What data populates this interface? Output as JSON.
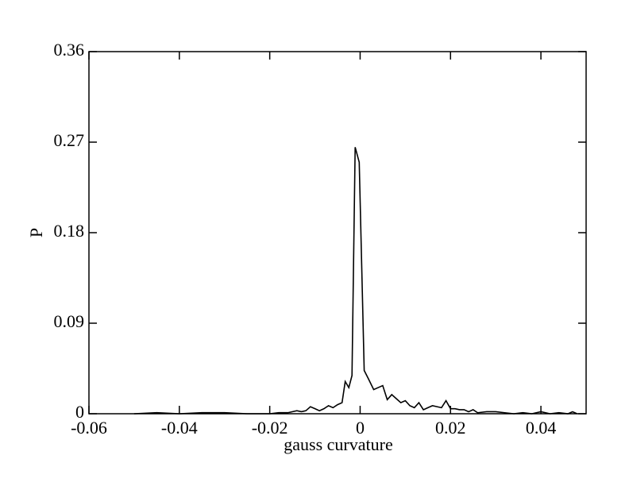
{
  "chart_data": {
    "type": "line",
    "xlabel": "gauss curvature",
    "ylabel": "P",
    "x": [
      -0.05,
      -0.045,
      -0.04,
      -0.035,
      -0.03,
      -0.025,
      -0.02,
      -0.018,
      -0.016,
      -0.014,
      -0.013,
      -0.012,
      -0.011,
      -0.01,
      -0.009,
      -0.008,
      -0.007,
      -0.006,
      -0.005,
      -0.004,
      -0.0033,
      -0.0025,
      -0.0018,
      -0.0011,
      -0.0002,
      0.0009,
      0.0018,
      0.003,
      0.004,
      0.005,
      0.006,
      0.007,
      0.008,
      0.009,
      0.01,
      0.011,
      0.012,
      0.013,
      0.014,
      0.015,
      0.016,
      0.017,
      0.018,
      0.019,
      0.02,
      0.021,
      0.022,
      0.023,
      0.024,
      0.025,
      0.026,
      0.028,
      0.03,
      0.032,
      0.034,
      0.036,
      0.038,
      0.04,
      0.042,
      0.044,
      0.046,
      0.047,
      0.048
    ],
    "series": [
      {
        "color": "#000000",
        "values": [
          0,
          0.001,
          0,
          0.001,
          0.001,
          0,
          0,
          0.001,
          0.001,
          0.003,
          0.002,
          0.003,
          0.007,
          0.005,
          0.003,
          0.005,
          0.008,
          0.006,
          0.009,
          0.011,
          0.032,
          0.026,
          0.038,
          0.265,
          0.25,
          0.043,
          0.035,
          0.024,
          0.026,
          0.028,
          0.014,
          0.019,
          0.015,
          0.011,
          0.013,
          0.008,
          0.006,
          0.011,
          0.004,
          0.006,
          0.008,
          0.007,
          0.006,
          0.013,
          0.005,
          0.005,
          0.004,
          0.004,
          0.002,
          0.004,
          0.001,
          0.002,
          0.002,
          0.001,
          0,
          0.001,
          0,
          0.002,
          0,
          0.001,
          0,
          0.002,
          0
        ]
      }
    ],
    "xlim": [
      -0.06,
      0.05
    ],
    "xticks": [
      -0.06,
      -0.04,
      -0.02,
      0,
      0.02,
      0.04
    ],
    "ylim": [
      0,
      0.36
    ],
    "yticks": [
      0,
      0.09,
      0.18,
      0.27,
      0.36
    ]
  }
}
